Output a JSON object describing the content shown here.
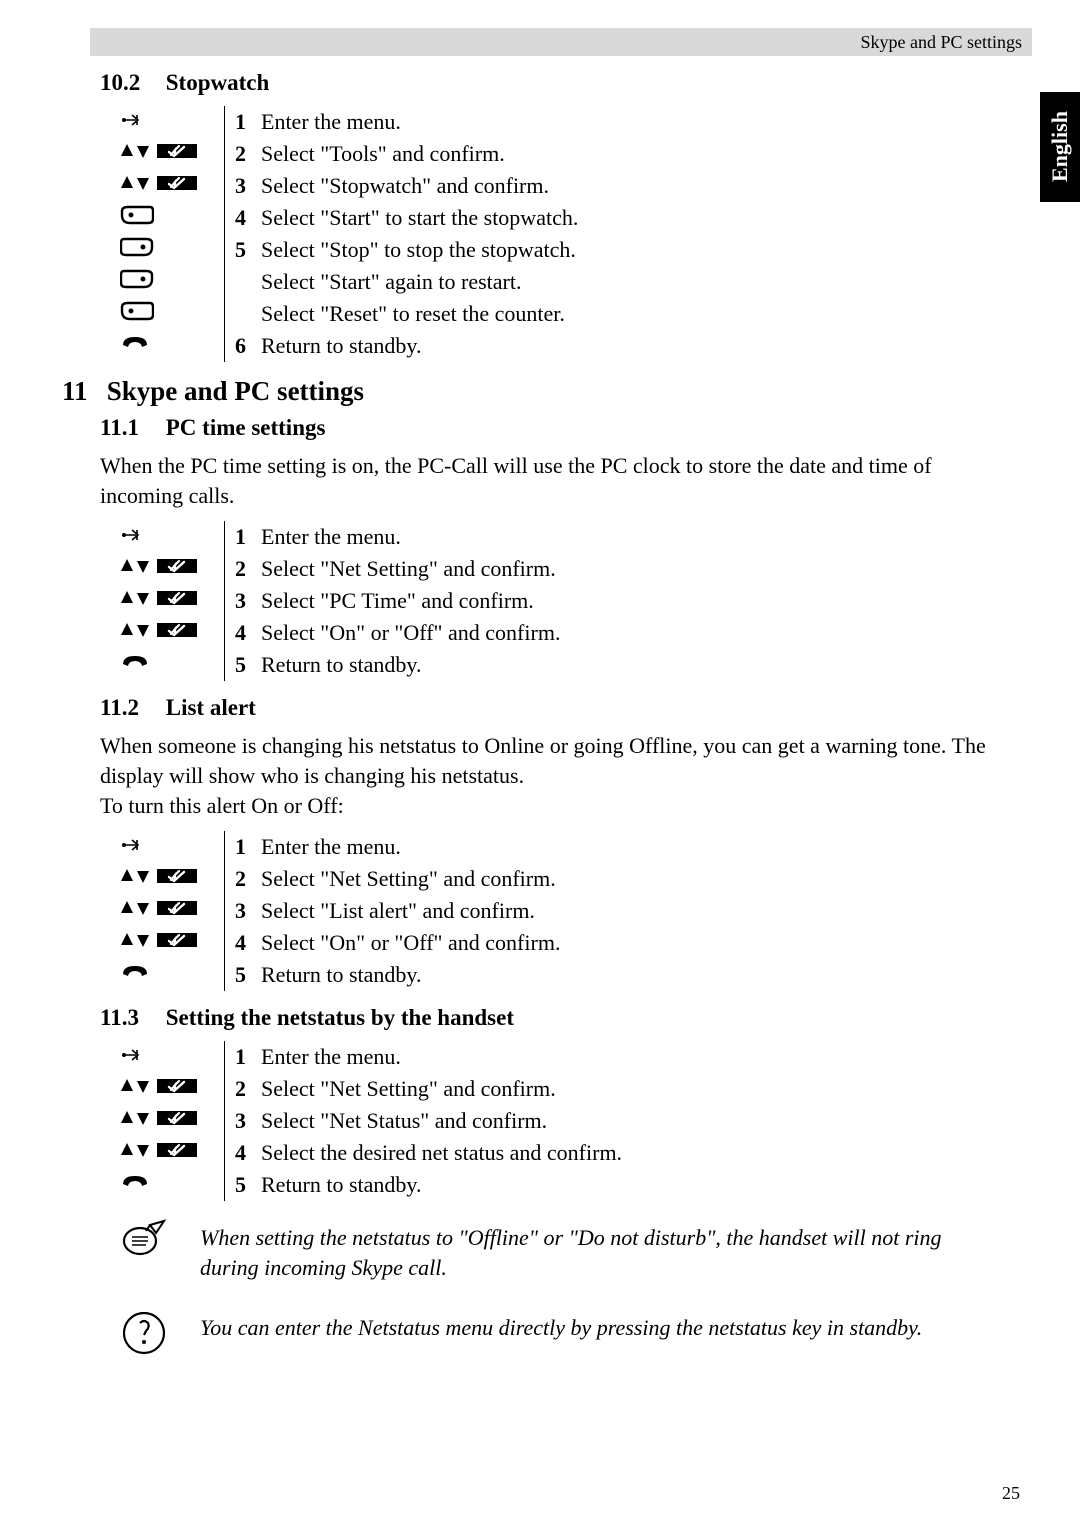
{
  "header": {
    "breadcrumb": "Skype and PC settings"
  },
  "side_tab": {
    "label": "English"
  },
  "section_10_2": {
    "number": "10.2",
    "title": "Stopwatch",
    "steps": [
      {
        "icons": [
          "menu"
        ],
        "num": "1",
        "text": "Enter the menu."
      },
      {
        "icons": [
          "updown",
          "ok"
        ],
        "num": "2",
        "text": "Select \"Tools\" and confirm."
      },
      {
        "icons": [
          "updown",
          "ok"
        ],
        "num": "3",
        "text": "Select \"Stopwatch\" and confirm."
      },
      {
        "icons": [
          "soft-left"
        ],
        "num": "4",
        "text": "Select \"Start\" to start the stopwatch."
      },
      {
        "icons": [
          "soft-right"
        ],
        "num": "5",
        "text": "Select \"Stop\" to stop the stopwatch."
      },
      {
        "icons": [
          "soft-right"
        ],
        "num": "",
        "text": "Select \"Start\" again to restart."
      },
      {
        "icons": [
          "soft-left"
        ],
        "num": "",
        "text": "Select \"Reset\" to reset the counter."
      },
      {
        "icons": [
          "hangup"
        ],
        "num": "6",
        "text": "Return to standby."
      }
    ]
  },
  "section_11": {
    "number": "11",
    "title": "Skype and PC settings"
  },
  "section_11_1": {
    "number": "11.1",
    "title": "PC time settings",
    "intro": "When the PC time setting is on, the PC-Call will use the PC clock to store the date and time of incoming calls.",
    "steps": [
      {
        "icons": [
          "menu"
        ],
        "num": "1",
        "text": "Enter the menu."
      },
      {
        "icons": [
          "updown",
          "ok"
        ],
        "num": "2",
        "text": "Select \"Net Setting\" and confirm."
      },
      {
        "icons": [
          "updown",
          "ok"
        ],
        "num": "3",
        "text": "Select \"PC Time\" and confirm."
      },
      {
        "icons": [
          "updown",
          "ok"
        ],
        "num": "4",
        "text": "Select \"On\" or \"Off\" and confirm."
      },
      {
        "icons": [
          "hangup"
        ],
        "num": "5",
        "text": "Return to standby."
      }
    ]
  },
  "section_11_2": {
    "number": "11.2",
    "title": "List alert",
    "intro": "When someone is changing his netstatus to Online or going Offline, you can get a warning tone. The display will show who is changing his netstatus.\nTo turn this alert On or Off:",
    "steps": [
      {
        "icons": [
          "menu"
        ],
        "num": "1",
        "text": "Enter the menu."
      },
      {
        "icons": [
          "updown",
          "ok"
        ],
        "num": "2",
        "text": "Select \"Net Setting\" and confirm."
      },
      {
        "icons": [
          "updown",
          "ok"
        ],
        "num": "3",
        "text": "Select \"List alert\" and confirm."
      },
      {
        "icons": [
          "updown",
          "ok"
        ],
        "num": "4",
        "text": "Select \"On\" or \"Off\" and confirm."
      },
      {
        "icons": [
          "hangup"
        ],
        "num": "5",
        "text": "Return to standby."
      }
    ]
  },
  "section_11_3": {
    "number": "11.3",
    "title": "Setting the netstatus by the handset",
    "steps": [
      {
        "icons": [
          "menu"
        ],
        "num": "1",
        "text": "Enter the menu."
      },
      {
        "icons": [
          "updown",
          "ok"
        ],
        "num": "2",
        "text": "Select \"Net Setting\" and confirm."
      },
      {
        "icons": [
          "updown",
          "ok"
        ],
        "num": "3",
        "text": "Select \"Net Status\" and confirm."
      },
      {
        "icons": [
          "updown",
          "ok"
        ],
        "num": "4",
        "text": "Select the desired net status and confirm."
      },
      {
        "icons": [
          "hangup"
        ],
        "num": "5",
        "text": "Return to standby."
      }
    ],
    "note1": "When setting the netstatus to \"Offline\" or \"Do not disturb\", the handset will not ring during incoming Skype call.",
    "note2": "You can enter the Netstatus menu directly by pressing the netstatus key in standby."
  },
  "page_number": "25"
}
